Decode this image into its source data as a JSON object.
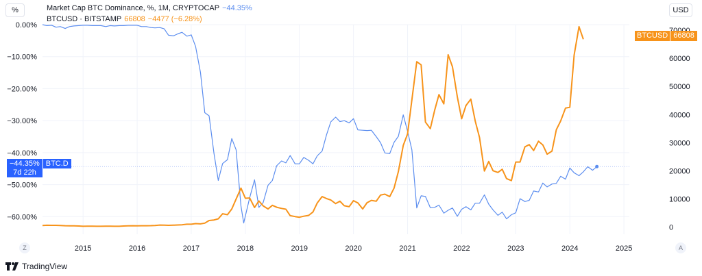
{
  "left_scale_button": "%",
  "right_scale_button": "USD",
  "legend": {
    "btcd_title": "Market Cap BTC Dominance, %, 1M, CRYPTOCAP",
    "btcd_value": "−44.35%",
    "btc_title": "BTCUSD · BITSTAMP",
    "btc_value": "66808",
    "btc_change": "−4477 (−6.28%)"
  },
  "badges": {
    "btcd_value": "−44.35%",
    "btcd_name": "BTC.D",
    "btcd_countdown": "7d 22h",
    "btc_name": "BTCUSD",
    "btc_value": "66808"
  },
  "bottom_left_button": "Z",
  "bottom_right_button": "A",
  "branding": "TradingView",
  "colors": {
    "btcd": "#5b8def",
    "btc": "#f7931a",
    "grid": "#f0f3fa",
    "axis_text": "#131722"
  },
  "chart_data": {
    "type": "line",
    "x_ticks": [
      "2015",
      "2016",
      "2017",
      "2018",
      "2019",
      "2020",
      "2021",
      "2022",
      "2023",
      "2024",
      "2025"
    ],
    "xlim": [
      2014.25,
      2025.1
    ],
    "left_axis": {
      "ticks": [
        "0.00%",
        "−10.00%",
        "−20.00%",
        "−30.00%",
        "−40.00%",
        "−50.00%",
        "−60.00%"
      ],
      "ylim": [
        -65.5,
        0
      ]
    },
    "right_axis": {
      "ticks": [
        "70000",
        "60000",
        "50000",
        "40000",
        "30000",
        "20000",
        "10000",
        "0"
      ],
      "ylim": [
        -2600,
        72000
      ]
    },
    "series": [
      {
        "name": "BTC.D",
        "axis": "left",
        "points": [
          [
            2014.25,
            0
          ],
          [
            2014.33,
            -0.3
          ],
          [
            2014.42,
            -0.2
          ],
          [
            2014.5,
            -0.8
          ],
          [
            2014.58,
            -0.6
          ],
          [
            2014.67,
            -1.2
          ],
          [
            2014.75,
            -0.6
          ],
          [
            2014.83,
            -0.4
          ],
          [
            2014.92,
            -0.3
          ],
          [
            2015.0,
            -0.2
          ],
          [
            2015.08,
            -0.2
          ],
          [
            2015.17,
            -0.3
          ],
          [
            2015.25,
            -0.3
          ],
          [
            2015.33,
            -0.3
          ],
          [
            2015.42,
            -0.6
          ],
          [
            2015.5,
            -0.3
          ],
          [
            2015.58,
            -0.4
          ],
          [
            2015.67,
            -0.3
          ],
          [
            2015.75,
            -0.3
          ],
          [
            2015.83,
            -0.2
          ],
          [
            2015.92,
            -0.2
          ],
          [
            2016.0,
            -0.2
          ],
          [
            2016.08,
            -0.6
          ],
          [
            2016.17,
            -0.6
          ],
          [
            2016.25,
            -0.9
          ],
          [
            2016.33,
            -1.0
          ],
          [
            2016.42,
            -0.9
          ],
          [
            2016.5,
            -1.3
          ],
          [
            2016.58,
            -3.3
          ],
          [
            2016.67,
            -3.5
          ],
          [
            2016.75,
            -2.9
          ],
          [
            2016.83,
            -2.4
          ],
          [
            2016.92,
            -3.6
          ],
          [
            2017.0,
            -3.2
          ],
          [
            2017.08,
            -6.8
          ],
          [
            2017.17,
            -14.9
          ],
          [
            2017.25,
            -27.5
          ],
          [
            2017.33,
            -28.5
          ],
          [
            2017.42,
            -40.2
          ],
          [
            2017.5,
            -48.7
          ],
          [
            2017.58,
            -43.4
          ],
          [
            2017.67,
            -42.2
          ],
          [
            2017.75,
            -35.6
          ],
          [
            2017.83,
            -39.1
          ],
          [
            2017.92,
            -56.7
          ],
          [
            2017.97,
            -62.0
          ],
          [
            2018.08,
            -54.1
          ],
          [
            2018.17,
            -48.5
          ],
          [
            2018.25,
            -57.1
          ],
          [
            2018.33,
            -55.6
          ],
          [
            2018.42,
            -50.2
          ],
          [
            2018.5,
            -48.7
          ],
          [
            2018.58,
            -44.1
          ],
          [
            2018.67,
            -42.6
          ],
          [
            2018.75,
            -43.2
          ],
          [
            2018.83,
            -40.9
          ],
          [
            2018.92,
            -43.5
          ],
          [
            2019.0,
            -43.5
          ],
          [
            2019.08,
            -41.5
          ],
          [
            2019.17,
            -42.4
          ],
          [
            2019.25,
            -43.5
          ],
          [
            2019.33,
            -41.0
          ],
          [
            2019.42,
            -39.5
          ],
          [
            2019.5,
            -34.5
          ],
          [
            2019.58,
            -30.4
          ],
          [
            2019.67,
            -28.9
          ],
          [
            2019.75,
            -30.3
          ],
          [
            2019.83,
            -30.0
          ],
          [
            2019.92,
            -30.7
          ],
          [
            2020.0,
            -29.4
          ],
          [
            2020.08,
            -32.9
          ],
          [
            2020.17,
            -33.0
          ],
          [
            2020.25,
            -33.1
          ],
          [
            2020.33,
            -33.0
          ],
          [
            2020.42,
            -35.0
          ],
          [
            2020.5,
            -36.9
          ],
          [
            2020.58,
            -40.1
          ],
          [
            2020.67,
            -40.3
          ],
          [
            2020.75,
            -36.8
          ],
          [
            2020.83,
            -34.9
          ],
          [
            2020.92,
            -28.2
          ],
          [
            2021.0,
            -33.3
          ],
          [
            2021.08,
            -39.1
          ],
          [
            2021.17,
            -57.3
          ],
          [
            2021.25,
            -53.5
          ],
          [
            2021.33,
            -53.7
          ],
          [
            2021.42,
            -57.2
          ],
          [
            2021.5,
            -57.1
          ],
          [
            2021.58,
            -56.4
          ],
          [
            2021.67,
            -58.9
          ],
          [
            2021.75,
            -58.0
          ],
          [
            2021.83,
            -57.3
          ],
          [
            2021.92,
            -59.9
          ],
          [
            2022.0,
            -57.7
          ],
          [
            2022.08,
            -56.9
          ],
          [
            2022.17,
            -57.9
          ],
          [
            2022.25,
            -55.8
          ],
          [
            2022.33,
            -55.8
          ],
          [
            2022.42,
            -53.2
          ],
          [
            2022.5,
            -56.1
          ],
          [
            2022.58,
            -57.9
          ],
          [
            2022.67,
            -59.6
          ],
          [
            2022.75,
            -58.6
          ],
          [
            2022.83,
            -60.7
          ],
          [
            2022.92,
            -59.4
          ],
          [
            2023.0,
            -58.8
          ],
          [
            2023.08,
            -54.4
          ],
          [
            2023.17,
            -55.3
          ],
          [
            2023.25,
            -54.9
          ],
          [
            2023.33,
            -52.0
          ],
          [
            2023.42,
            -52.3
          ],
          [
            2023.5,
            -49.5
          ],
          [
            2023.58,
            -50.7
          ],
          [
            2023.67,
            -49.8
          ],
          [
            2023.75,
            -49.6
          ],
          [
            2023.83,
            -47.4
          ],
          [
            2023.92,
            -48.3
          ],
          [
            2024.0,
            -44.8
          ],
          [
            2024.08,
            -46.3
          ],
          [
            2024.17,
            -47.2
          ],
          [
            2024.25,
            -46.0
          ],
          [
            2024.33,
            -44.4
          ],
          [
            2024.42,
            -45.5
          ],
          [
            2024.5,
            -44.35
          ]
        ]
      },
      {
        "name": "BTCUSD",
        "axis": "right",
        "points": [
          [
            2014.25,
            490
          ],
          [
            2014.33,
            600
          ],
          [
            2014.42,
            580
          ],
          [
            2014.5,
            570
          ],
          [
            2014.58,
            520
          ],
          [
            2014.67,
            420
          ],
          [
            2014.75,
            390
          ],
          [
            2014.83,
            370
          ],
          [
            2014.92,
            330
          ],
          [
            2015.0,
            230
          ],
          [
            2015.08,
            250
          ],
          [
            2015.17,
            245
          ],
          [
            2015.25,
            240
          ],
          [
            2015.33,
            230
          ],
          [
            2015.42,
            262
          ],
          [
            2015.5,
            284
          ],
          [
            2015.58,
            230
          ],
          [
            2015.67,
            237
          ],
          [
            2015.75,
            315
          ],
          [
            2015.83,
            378
          ],
          [
            2015.92,
            430
          ],
          [
            2016.0,
            370
          ],
          [
            2016.08,
            435
          ],
          [
            2016.17,
            415
          ],
          [
            2016.25,
            448
          ],
          [
            2016.33,
            530
          ],
          [
            2016.42,
            675
          ],
          [
            2016.5,
            622
          ],
          [
            2016.58,
            575
          ],
          [
            2016.67,
            609
          ],
          [
            2016.75,
            700
          ],
          [
            2016.83,
            742
          ],
          [
            2016.92,
            963
          ],
          [
            2017.0,
            965
          ],
          [
            2017.08,
            1190
          ],
          [
            2017.17,
            1080
          ],
          [
            2017.25,
            1350
          ],
          [
            2017.33,
            2280
          ],
          [
            2017.42,
            2480
          ],
          [
            2017.5,
            2880
          ],
          [
            2017.58,
            4700
          ],
          [
            2017.67,
            4350
          ],
          [
            2017.75,
            6400
          ],
          [
            2017.83,
            9900
          ],
          [
            2017.92,
            13800
          ],
          [
            2018.0,
            10200
          ],
          [
            2018.08,
            10300
          ],
          [
            2018.17,
            6900
          ],
          [
            2018.25,
            9250
          ],
          [
            2018.33,
            7500
          ],
          [
            2018.42,
            6400
          ],
          [
            2018.5,
            7700
          ],
          [
            2018.58,
            7000
          ],
          [
            2018.67,
            6600
          ],
          [
            2018.75,
            6300
          ],
          [
            2018.83,
            4000
          ],
          [
            2018.92,
            3700
          ],
          [
            2019.0,
            3450
          ],
          [
            2019.08,
            3800
          ],
          [
            2019.17,
            4100
          ],
          [
            2019.25,
            5300
          ],
          [
            2019.33,
            8550
          ],
          [
            2019.42,
            10800
          ],
          [
            2019.5,
            10100
          ],
          [
            2019.58,
            9600
          ],
          [
            2019.67,
            8300
          ],
          [
            2019.75,
            9150
          ],
          [
            2019.83,
            7550
          ],
          [
            2019.92,
            7200
          ],
          [
            2020.0,
            9350
          ],
          [
            2020.08,
            8550
          ],
          [
            2020.17,
            6400
          ],
          [
            2020.25,
            8620
          ],
          [
            2020.33,
            9450
          ],
          [
            2020.42,
            9140
          ],
          [
            2020.5,
            11350
          ],
          [
            2020.58,
            11650
          ],
          [
            2020.67,
            10780
          ],
          [
            2020.75,
            13800
          ],
          [
            2020.83,
            19700
          ],
          [
            2020.92,
            29000
          ],
          [
            2021.0,
            33100
          ],
          [
            2021.08,
            45200
          ],
          [
            2021.17,
            58800
          ],
          [
            2021.25,
            57700
          ],
          [
            2021.33,
            37300
          ],
          [
            2021.42,
            35000
          ],
          [
            2021.5,
            41500
          ],
          [
            2021.58,
            47100
          ],
          [
            2021.67,
            43800
          ],
          [
            2021.75,
            61300
          ],
          [
            2021.83,
            57000
          ],
          [
            2021.92,
            46300
          ],
          [
            2022.0,
            38500
          ],
          [
            2022.08,
            43200
          ],
          [
            2022.17,
            45500
          ],
          [
            2022.25,
            37700
          ],
          [
            2022.33,
            31800
          ],
          [
            2022.42,
            19900
          ],
          [
            2022.5,
            23300
          ],
          [
            2022.58,
            20000
          ],
          [
            2022.67,
            19400
          ],
          [
            2022.75,
            20500
          ],
          [
            2022.83,
            17200
          ],
          [
            2022.92,
            16500
          ],
          [
            2023.0,
            23100
          ],
          [
            2023.08,
            23100
          ],
          [
            2023.17,
            28500
          ],
          [
            2023.25,
            29300
          ],
          [
            2023.33,
            27200
          ],
          [
            2023.42,
            30500
          ],
          [
            2023.5,
            29200
          ],
          [
            2023.58,
            25900
          ],
          [
            2023.67,
            27000
          ],
          [
            2023.75,
            34600
          ],
          [
            2023.83,
            37700
          ],
          [
            2023.92,
            42300
          ],
          [
            2024.0,
            42600
          ],
          [
            2024.08,
            61200
          ],
          [
            2024.17,
            71300
          ],
          [
            2024.25,
            66808
          ]
        ]
      }
    ],
    "last_value_lines": {
      "btcd": -44.35
    }
  }
}
